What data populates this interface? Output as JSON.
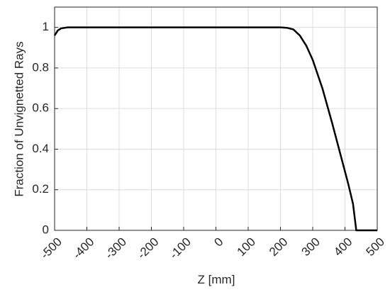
{
  "chart_data": {
    "type": "line",
    "xlabel": "Z [mm]",
    "ylabel": "Fraction of Unvignetted Rays",
    "x": [
      -500,
      -490,
      -480,
      -460,
      0,
      200,
      220,
      240,
      260,
      280,
      300,
      330,
      360,
      390,
      410,
      425,
      435,
      500
    ],
    "series": [
      {
        "name": "Fraction",
        "color": "#000000",
        "values": [
          0.96,
          0.985,
          0.995,
          1,
          1,
          1,
          0.998,
          0.99,
          0.96,
          0.91,
          0.84,
          0.7,
          0.53,
          0.35,
          0.23,
          0.13,
          0,
          0
        ]
      }
    ],
    "xlim": [
      -500,
      500
    ],
    "xticks": [
      -500,
      -400,
      -300,
      -200,
      -100,
      0,
      100,
      200,
      300,
      400,
      500
    ],
    "ylim": [
      0,
      1.1
    ],
    "yticks": [
      0,
      0.2,
      0.4,
      0.6,
      0.8,
      1
    ],
    "grid": true
  }
}
